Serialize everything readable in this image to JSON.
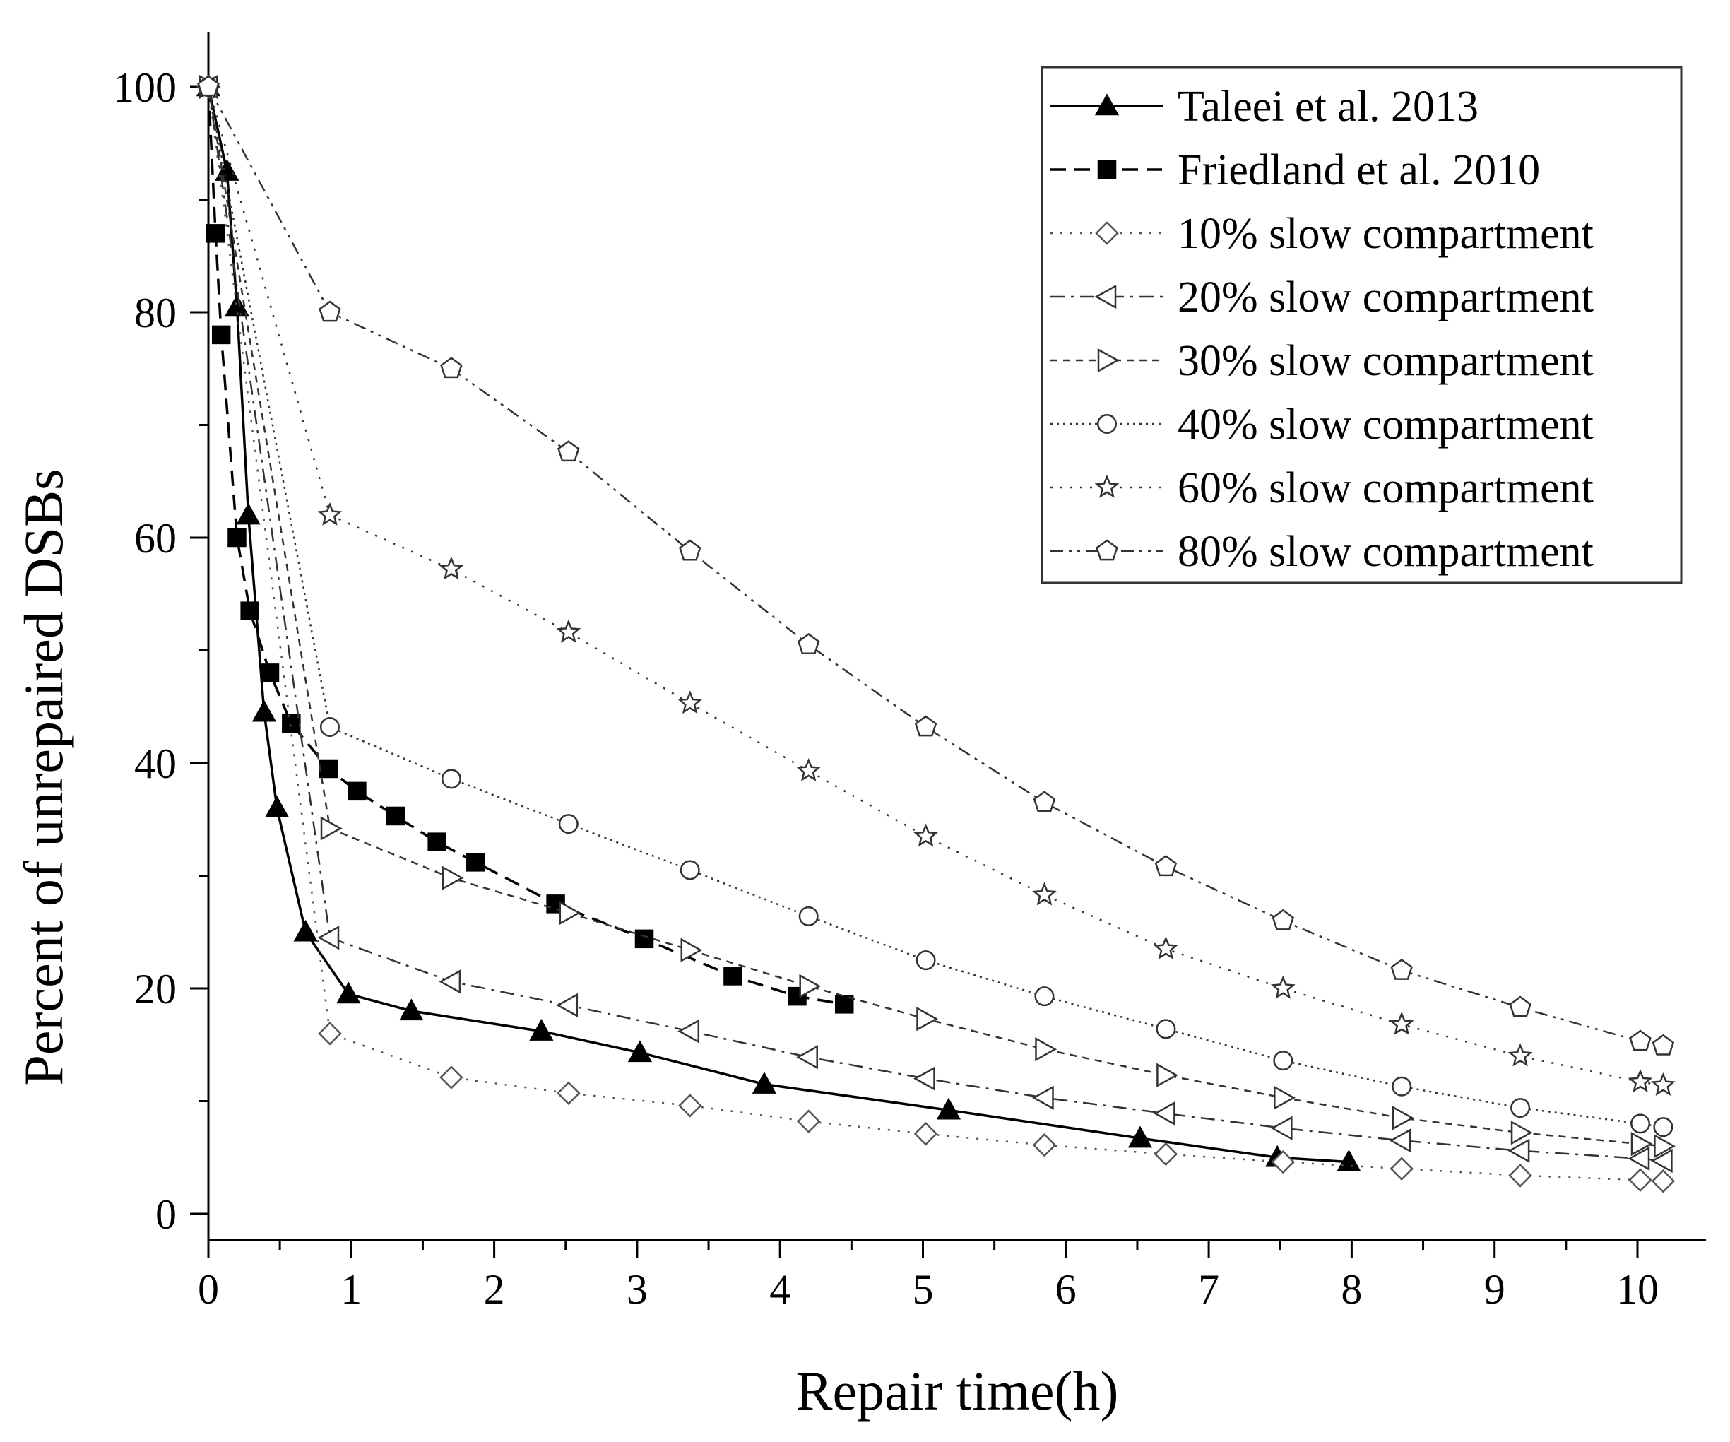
{
  "chart_data": {
    "type": "line",
    "xlabel": "Repair time(h)",
    "ylabel": "Percent of unrepaired DSBs",
    "xlim": [
      0,
      10.5
    ],
    "ylim": [
      -2,
      105
    ],
    "x_ticks": [
      0,
      1,
      2,
      3,
      4,
      5,
      6,
      7,
      8,
      9,
      10
    ],
    "y_ticks": [
      0,
      20,
      40,
      60,
      80,
      100
    ],
    "legend_position": "top-right",
    "series": [
      {
        "name": "Taleei et al. 2013",
        "color": "#000000",
        "dash": "solid",
        "marker": "triangle-filled",
        "x": [
          0,
          0.13,
          0.2,
          0.28,
          0.39,
          0.48,
          0.68,
          0.98,
          1.42,
          2.33,
          3.02,
          3.89,
          5.18,
          6.52,
          7.48,
          7.98
        ],
        "y": [
          100,
          92.5,
          80.5,
          62,
          44.5,
          36,
          25,
          19.5,
          18,
          16.2,
          14.3,
          11.5,
          9.2,
          6.7,
          5,
          4.6
        ]
      },
      {
        "name": "Friedland et al. 2010",
        "color": "#000000",
        "dash": "dashed",
        "marker": "square-filled",
        "x": [
          0,
          0.05,
          0.09,
          0.2,
          0.29,
          0.43,
          0.58,
          0.84,
          1.04,
          1.31,
          1.6,
          1.87,
          2.43,
          3.05,
          3.67,
          4.12,
          4.45
        ],
        "y": [
          100,
          87,
          78,
          60,
          53.5,
          48,
          43.5,
          39.5,
          37.5,
          35.3,
          33,
          31.2,
          27.5,
          24.4,
          21.1,
          19.3,
          18.6
        ]
      },
      {
        "name": "10% slow compartment",
        "color": "#555555",
        "dash": "dotted",
        "marker": "diamond-open",
        "x": [
          0,
          0.85,
          1.7,
          2.52,
          3.37,
          4.2,
          5.02,
          5.85,
          6.7,
          7.52,
          8.35,
          9.18,
          10.02,
          10.18
        ],
        "y": [
          100,
          16,
          12.1,
          10.7,
          9.6,
          8.2,
          7.1,
          6.1,
          5.3,
          4.6,
          4,
          3.4,
          3,
          2.9
        ]
      },
      {
        "name": "20% slow compartment",
        "color": "#333333",
        "dash": "dashdot",
        "marker": "triangle-left-open",
        "x": [
          0,
          0.85,
          1.7,
          2.52,
          3.37,
          4.2,
          5.02,
          5.85,
          6.7,
          7.52,
          8.35,
          9.18,
          10.02,
          10.18
        ],
        "y": [
          100,
          24.5,
          20.6,
          18.5,
          16.2,
          13.9,
          12,
          10.3,
          8.9,
          7.6,
          6.5,
          5.6,
          4.9,
          4.7
        ]
      },
      {
        "name": "30% slow compartment",
        "color": "#333333",
        "dash": "shortdash",
        "marker": "triangle-right-open",
        "x": [
          0,
          0.85,
          1.7,
          2.52,
          3.37,
          4.2,
          5.02,
          5.85,
          6.7,
          7.52,
          8.35,
          9.18,
          10.02,
          10.18
        ],
        "y": [
          100,
          34.2,
          29.8,
          26.7,
          23.4,
          20.2,
          17.3,
          14.6,
          12.3,
          10.3,
          8.5,
          7.2,
          6.2,
          6
        ]
      },
      {
        "name": "40% slow compartment",
        "color": "#333333",
        "dash": "densedot",
        "marker": "circle-open",
        "x": [
          0,
          0.85,
          1.7,
          2.52,
          3.37,
          4.2,
          5.02,
          5.85,
          6.7,
          7.52,
          8.35,
          9.18,
          10.02,
          10.18
        ],
        "y": [
          100,
          43.2,
          38.6,
          34.6,
          30.5,
          26.4,
          22.5,
          19.3,
          16.4,
          13.6,
          11.3,
          9.4,
          8,
          7.7
        ]
      },
      {
        "name": "60% slow compartment",
        "color": "#333333",
        "dash": "dotted",
        "marker": "star-open",
        "x": [
          0,
          0.85,
          1.7,
          2.52,
          3.37,
          4.2,
          5.02,
          5.85,
          6.7,
          7.52,
          8.35,
          9.18,
          10.02,
          10.18
        ],
        "y": [
          100,
          62,
          57.2,
          51.6,
          45.3,
          39.3,
          33.5,
          28.3,
          23.5,
          20,
          16.8,
          14,
          11.7,
          11.4
        ]
      },
      {
        "name": "80% slow compartment",
        "color": "#333333",
        "dash": "dashdotdot",
        "marker": "pentagon-open",
        "x": [
          0,
          0.85,
          1.7,
          2.52,
          3.37,
          4.2,
          5.02,
          5.85,
          6.7,
          7.52,
          8.35,
          9.18,
          10.02,
          10.18
        ],
        "y": [
          100,
          80,
          75,
          67.6,
          58.8,
          50.5,
          43.2,
          36.5,
          30.8,
          26,
          21.6,
          18.3,
          15.3,
          14.9
        ]
      }
    ]
  }
}
